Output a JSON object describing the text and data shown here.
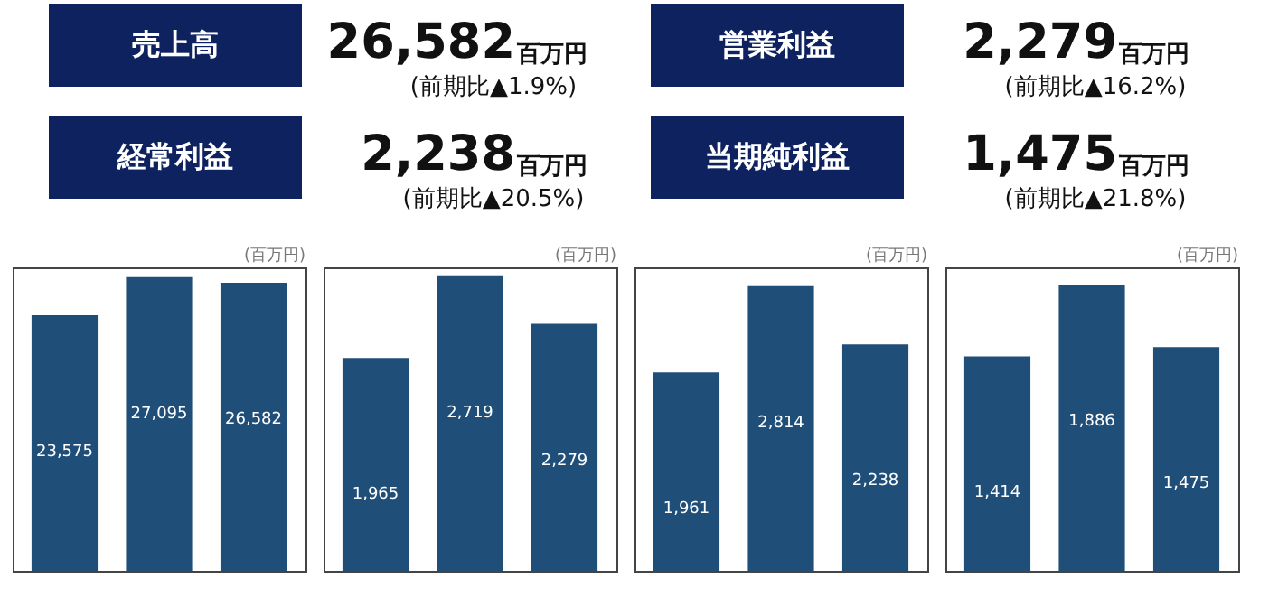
{
  "chart_data": [
    {
      "type": "other",
      "color": "#0f2260",
      "annotations": [
        "売上高",
        "26,582",
        "百万円",
        "(前期比▲1.9%)",
        "営業利益",
        "2,279",
        "百万円",
        "(前期比▲16.2%)",
        "経常利益",
        "2,238",
        "百万円",
        "(前期比▲20.5%)",
        "当期純利益",
        "1,475",
        "百万円",
        "(前期比▲21.8%)"
      ]
    },
    {
      "type": "bar",
      "ylabel": "(百万円)",
      "categories": [
        null,
        null,
        null
      ],
      "values": [
        23575,
        27095,
        26582
      ],
      "value_labels": [
        "23,575",
        "27,095",
        "26,582"
      ],
      "color": "#1f4e79"
    },
    {
      "type": "bar",
      "ylabel": "(百万円)",
      "categories": [
        null,
        null,
        null
      ],
      "values": [
        1965,
        2719,
        2279
      ],
      "value_labels": [
        "1,965",
        "2,719",
        "2,279"
      ],
      "color": "#1f4e79"
    },
    {
      "type": "bar",
      "ylabel": "(百万円)",
      "categories": [
        null,
        null,
        null
      ],
      "values": [
        1961,
        2814,
        2238
      ],
      "value_labels": [
        "1,961",
        "2,814",
        "2,238"
      ],
      "color": "#1f4e79"
    },
    {
      "type": "bar",
      "ylabel": "(百万円)",
      "categories": [
        null,
        null,
        null
      ],
      "values": [
        1414,
        1886,
        1475
      ],
      "value_labels": [
        "1,414",
        "1,886",
        "1,475"
      ],
      "color": "#1f4e79"
    }
  ]
}
